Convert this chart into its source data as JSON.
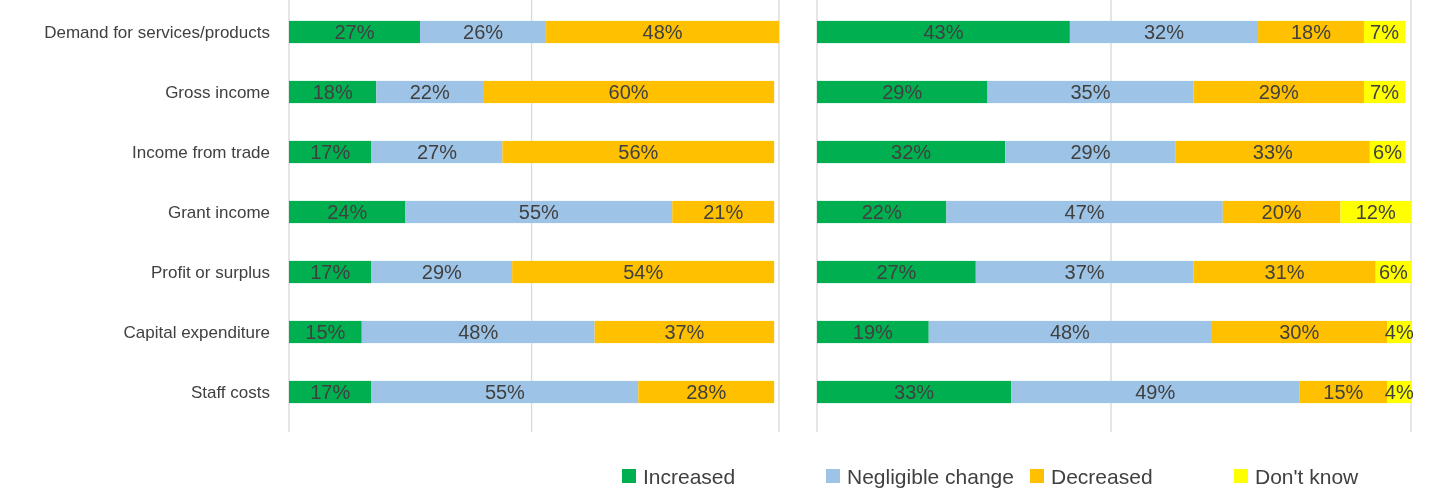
{
  "chart_data": [
    {
      "type": "bar",
      "orientation": "horizontal",
      "stacked": true,
      "categories": [
        "Demand for services/products",
        "Gross income",
        "Income from trade",
        "Grant income",
        "Profit or surplus",
        "Capital expenditure",
        "Staff costs"
      ],
      "series": [
        {
          "color": "#00b050",
          "values": [
            27,
            18,
            17,
            24,
            17,
            15,
            17
          ],
          "value_labels": [
            "27%",
            "18%",
            "17%",
            "24%",
            "17%",
            "15%",
            "17%"
          ]
        },
        {
          "color": "#9dc3e6",
          "values": [
            26,
            22,
            27,
            55,
            29,
            48,
            55
          ],
          "value_labels": [
            "26%",
            "22%",
            "27%",
            "55%",
            "29%",
            "48%",
            "55%"
          ]
        },
        {
          "color": "#ffc000",
          "values": [
            48,
            60,
            56,
            21,
            54,
            37,
            28
          ],
          "value_labels": [
            "48%",
            "60%",
            "56%",
            "21%",
            "54%",
            "37%",
            "28%"
          ]
        }
      ],
      "ref_lines": [
        {
          "axis": "x",
          "value": 50,
          "color": "#d9d9d9"
        }
      ],
      "legend": false
    },
    {
      "type": "bar",
      "orientation": "horizontal",
      "stacked": true,
      "categories": [
        null,
        null,
        null,
        null,
        null,
        null,
        null
      ],
      "series": [
        {
          "name": "Increased",
          "color": "#00b050",
          "values": [
            43,
            29,
            32,
            22,
            27,
            19,
            33
          ],
          "value_labels": [
            "43%",
            "29%",
            "32%",
            "22%",
            "27%",
            "19%",
            "33%"
          ]
        },
        {
          "name": "Negligible change",
          "color": "#9dc3e6",
          "values": [
            32,
            35,
            29,
            47,
            37,
            48,
            49
          ],
          "value_labels": [
            "32%",
            "35%",
            "29%",
            "47%",
            "37%",
            "48%",
            "49%"
          ]
        },
        {
          "name": "Decreased",
          "color": "#ffc000",
          "values": [
            18,
            29,
            33,
            20,
            31,
            30,
            15
          ],
          "value_labels": [
            "18%",
            "29%",
            "33%",
            "20%",
            "31%",
            "30%",
            "15%"
          ]
        },
        {
          "name": "Don't know",
          "color": "#ffff00",
          "values": [
            7,
            7,
            6,
            12,
            6,
            4,
            4
          ],
          "value_labels": [
            "7%",
            "7%",
            "6%",
            "12%",
            "6%",
            "4%",
            "4%"
          ]
        }
      ],
      "ref_lines": [
        {
          "axis": "x",
          "value": 50,
          "color": "#d9d9d9"
        }
      ],
      "legend": "bottom"
    }
  ]
}
